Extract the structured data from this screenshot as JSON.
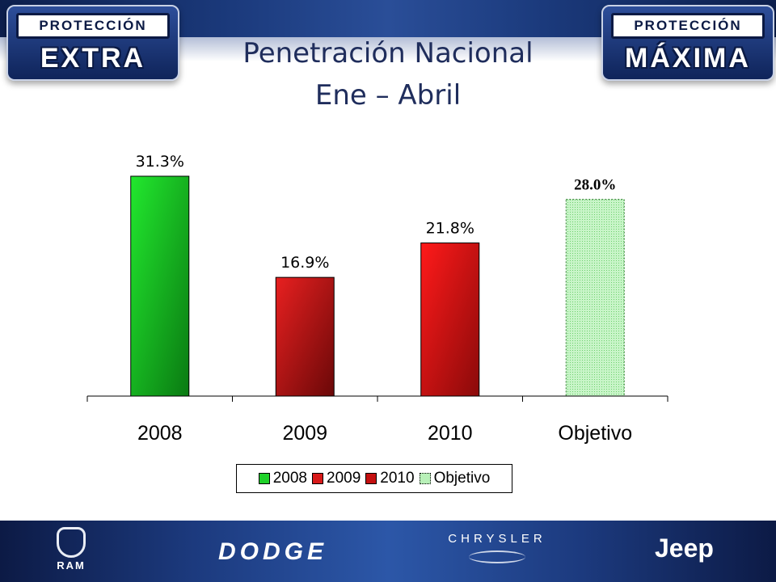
{
  "header": {
    "badge_left": {
      "top": "PROTECCIÓN",
      "main": "EXTRA"
    },
    "badge_right": {
      "top": "PROTECCIÓN",
      "main": "MÁXIMA"
    },
    "title_line1": "Penetración Nacional",
    "title_line2": "Ene – Abril"
  },
  "chart_data": {
    "type": "bar",
    "categories": [
      "2008",
      "2009",
      "2010",
      "Objetivo"
    ],
    "values": [
      31.3,
      16.9,
      21.8,
      28.0
    ],
    "data_labels": [
      "31.3%",
      "16.9%",
      "21.8%",
      "28.0%"
    ],
    "colors": [
      "#1fd12a",
      "#d81a1a",
      "#e01515",
      "#b8f0b8"
    ],
    "ylim": [
      0,
      31.3
    ],
    "grid": false,
    "legend": {
      "placement": "bottom",
      "entries": [
        "2008",
        "2009",
        "2010",
        "Objetivo"
      ]
    }
  },
  "footer": {
    "brands": {
      "ram": "RAM",
      "dodge": "DODGE",
      "chrysler": "CHRYSLER",
      "jeep": "Jeep"
    }
  }
}
